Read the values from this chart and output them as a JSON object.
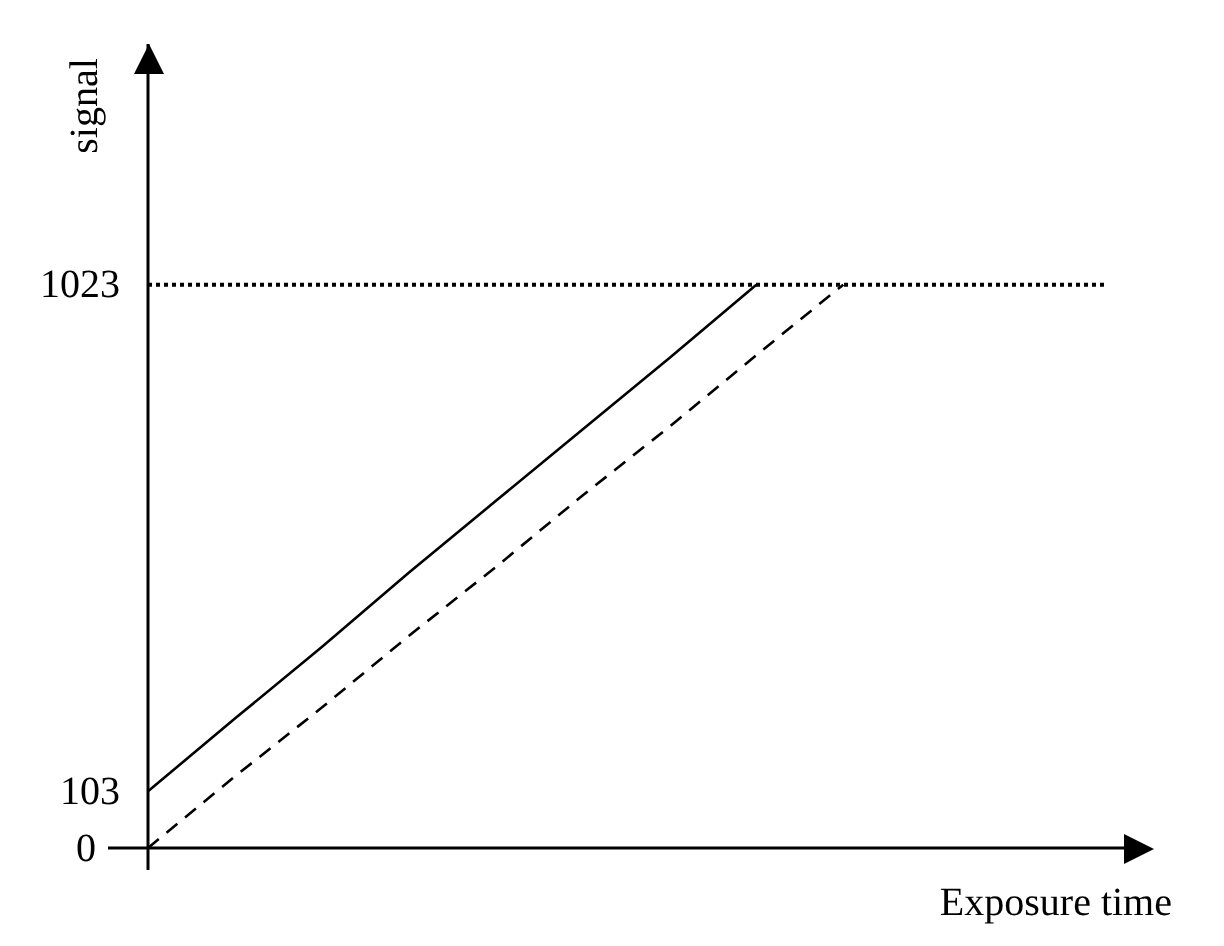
{
  "chart_data": {
    "type": "line",
    "xlabel": "Exposure time",
    "ylabel": "signal",
    "categories": [
      null,
      null,
      null,
      null,
      null,
      null,
      null,
      null,
      null,
      null,
      null,
      null
    ],
    "series": [
      {
        "color": "#000000",
        "line_style": "solid",
        "values": [
          103,
          235,
          365,
          500,
          630,
          760,
          890,
          1023,
          null,
          null,
          null,
          null
        ]
      },
      {
        "color": "#000000",
        "line_style": "dashed",
        "values": [
          0,
          130,
          255,
          385,
          510,
          640,
          765,
          895,
          1023,
          null,
          null,
          null
        ]
      }
    ],
    "ylim": [
      0,
      1460
    ],
    "yticks": [
      0,
      103,
      1023
    ],
    "ref_lines": [
      {
        "axis": "y",
        "value": 1023,
        "color": "#000000",
        "line_style": "dotted"
      }
    ],
    "tick_labels": "y",
    "legend": false
  }
}
